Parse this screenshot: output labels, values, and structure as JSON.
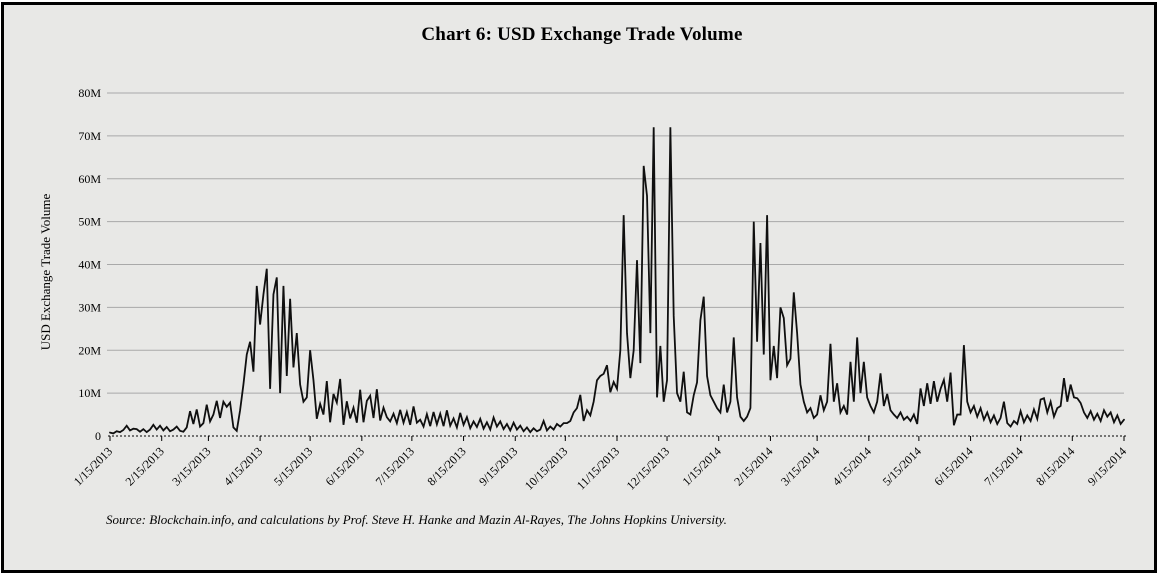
{
  "chart_data": {
    "type": "line",
    "title": "Chart 6: USD Exchange Trade Volume",
    "ylabel": "USD Exchange Trade Volume",
    "xlabel": "",
    "y_unit": "USD (millions)",
    "ylim": [
      0,
      80
    ],
    "y_tick_step": 10,
    "y_tick_labels": [
      "0",
      "10M",
      "20M",
      "30M",
      "40M",
      "50M",
      "60M",
      "70M",
      "80M"
    ],
    "x_start": "1/15/2013",
    "x_end": "9/15/2014",
    "total_days": 608,
    "sample_interval_days": 2,
    "x_tick_labels": [
      "1/15/2013",
      "2/15/2013",
      "3/15/2013",
      "4/15/2013",
      "5/15/2013",
      "6/15/2013",
      "7/15/2013",
      "8/15/2013",
      "9/15/2013",
      "10/15/2013",
      "11/15/2013",
      "12/15/2013",
      "1/15/2014",
      "2/15/2014",
      "3/15/2014",
      "4/15/2014",
      "5/15/2014",
      "6/15/2014",
      "7/15/2014",
      "8/15/2014",
      "9/15/2014"
    ],
    "x_tick_day_offsets": [
      0,
      31,
      59,
      90,
      120,
      151,
      181,
      212,
      243,
      273,
      304,
      334,
      365,
      396,
      424,
      455,
      485,
      516,
      546,
      577,
      608
    ],
    "grid": "horizontal",
    "legend": "none",
    "line_color": "#0f0f0f",
    "grid_color": "#a9a9a9",
    "plot_background": "#e8e8e6",
    "values_millions": [
      0.8,
      0.6,
      1.1,
      0.9,
      1.4,
      2.4,
      1.3,
      1.7,
      1.6,
      1.0,
      1.6,
      0.9,
      1.5,
      2.6,
      1.5,
      2.4,
      1.3,
      2.1,
      1.1,
      1.5,
      2.2,
      1.2,
      1.0,
      2.0,
      5.8,
      2.8,
      6.2,
      2.2,
      3.0,
      7.3,
      3.4,
      5.0,
      8.2,
      4.2,
      8.0,
      6.8,
      7.8,
      2.0,
      1.2,
      6.0,
      12.0,
      19.0,
      22,
      15,
      35,
      26,
      33,
      39,
      11,
      33,
      37,
      10,
      35,
      14,
      32,
      16,
      24,
      12,
      8,
      9,
      20,
      13,
      4,
      7.5,
      5.0,
      12.8,
      3.2,
      9.8,
      7.8,
      13.3,
      2.6,
      8.1,
      4.1,
      6.6,
      3.1,
      10.8,
      3.2,
      8.2,
      9.4,
      4.2,
      10.9,
      3.6,
      6.6,
      4.4,
      3.4,
      5.2,
      3.0,
      6.1,
      3.1,
      5.6,
      2.6,
      6.9,
      3.1,
      3.8,
      2.2,
      5.1,
      2.3,
      5.6,
      2.7,
      5.2,
      2.3,
      6.0,
      2.4,
      4.1,
      2.0,
      5.4,
      2.6,
      4.4,
      1.8,
      3.4,
      2.1,
      4.0,
      1.7,
      3.2,
      1.5,
      4.3,
      2.2,
      3.4,
      1.6,
      2.8,
      1.3,
      3.1,
      1.5,
      2.4,
      1.1,
      2.0,
      0.9,
      1.8,
      1.1,
      1.5,
      3.5,
      1.3,
      2.2,
      1.5,
      2.8,
      2.2,
      3.0,
      3.0,
      3.5,
      5.5,
      6.5,
      9.6,
      3.5,
      6.0,
      4.8,
      8.0,
      13.0,
      14.0,
      14.5,
      16.5,
      10.2,
      12.6,
      11.0,
      20.0,
      51.5,
      24,
      13.5,
      20,
      41,
      17,
      63,
      56,
      24,
      72,
      9,
      21,
      8,
      13,
      72,
      28,
      10,
      8,
      15,
      5.5,
      5.0,
      9.5,
      12.5,
      27,
      32.5,
      14,
      9.5,
      8,
      6.5,
      5.5,
      12,
      5.5,
      8,
      23,
      9,
      4.5,
      3.5,
      4.5,
      6.5,
      50,
      22,
      45,
      19,
      51.5,
      13,
      21,
      13.5,
      30,
      27.5,
      16.5,
      18,
      33.5,
      24,
      12,
      8,
      5.5,
      6.5,
      4.2,
      5,
      9.5,
      6,
      8,
      21.5,
      8,
      12.3,
      5.5,
      7,
      5,
      17.3,
      8,
      23,
      10,
      17.3,
      9,
      7,
      5.5,
      8,
      14.6,
      7,
      9.8,
      6,
      5,
      4.2,
      5.5,
      3.8,
      4.5,
      3.5,
      5,
      2.8,
      11.1,
      7,
      12.3,
      7.5,
      12.8,
      8,
      11,
      13.1,
      8,
      14.8,
      2.5,
      5,
      5,
      21.2,
      8,
      5.5,
      7,
      4.5,
      6.5,
      3.8,
      5.5,
      3.2,
      4.8,
      2.8,
      4.2,
      8.0,
      3.0,
      2.2,
      3.5,
      2.8,
      5.8,
      3.2,
      4.8,
      3.5,
      6.2,
      4.0,
      8.5,
      8.8,
      5.5,
      8.0,
      4.5,
      6.5,
      7.0,
      13.5,
      8,
      12,
      9,
      8.8,
      7.7,
      5.5,
      4.2,
      5.8,
      3.8,
      5.2,
      3.5,
      6.0,
      4.5,
      5.5,
      3.2,
      4.8,
      2.8,
      3.8
    ]
  },
  "source_note": "Source: Blockchain.info, and calculations by Prof. Steve H. Hanke and Mazin Al-Rayes, The Johns Hopkins University."
}
